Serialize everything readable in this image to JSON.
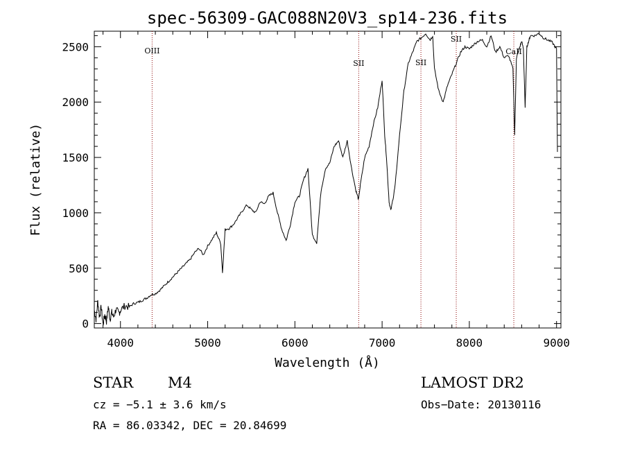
{
  "chart_data": {
    "type": "line",
    "title": "spec-56309-GAC088N20V3_sp14-236.fits",
    "xlabel": "Wavelength (Å)",
    "ylabel": "Flux (relative)",
    "xlim": [
      3700,
      9050
    ],
    "ylim": [
      -40,
      2640
    ],
    "x_ticks": [
      4000,
      5000,
      6000,
      7000,
      8000,
      9000
    ],
    "y_ticks": [
      0,
      500,
      1000,
      1500,
      2000,
      2500
    ],
    "grid": false,
    "series": [
      {
        "x": [
          3700,
          3720,
          3740,
          3760,
          3780,
          3800,
          3820,
          3840,
          3860,
          3880,
          3900,
          3920,
          3950,
          3980,
          4000,
          4050,
          4100,
          4150,
          4200,
          4250,
          4300,
          4350,
          4400,
          4450,
          4500,
          4550,
          4600,
          4650,
          4700,
          4750,
          4800,
          4850,
          4900,
          4950,
          5000,
          5050,
          5100,
          5150,
          5170,
          5200,
          5250,
          5300,
          5350,
          5400,
          5450,
          5500,
          5550,
          5600,
          5650,
          5700,
          5750,
          5800,
          5850,
          5900,
          5950,
          6000,
          6050,
          6100,
          6150,
          6200,
          6250,
          6300,
          6350,
          6400,
          6450,
          6500,
          6550,
          6600,
          6650,
          6700,
          6730,
          6750,
          6800,
          6850,
          6900,
          6950,
          7000,
          7030,
          7050,
          7080,
          7100,
          7130,
          7150,
          7200,
          7250,
          7300,
          7350,
          7400,
          7450,
          7500,
          7550,
          7580,
          7600,
          7650,
          7700,
          7750,
          7800,
          7850,
          7900,
          7950,
          8000,
          8050,
          8100,
          8150,
          8200,
          8250,
          8300,
          8350,
          8400,
          8450,
          8500,
          8520,
          8540,
          8560,
          8580,
          8600,
          8620,
          8640,
          8660,
          8680,
          8700,
          8750,
          8800,
          8850,
          8900,
          8950,
          9000,
          9010
        ],
        "y": [
          120,
          40,
          200,
          60,
          150,
          -10,
          80,
          20,
          150,
          40,
          100,
          60,
          130,
          90,
          120,
          160,
          150,
          180,
          190,
          210,
          230,
          260,
          270,
          300,
          340,
          380,
          420,
          460,
          500,
          540,
          580,
          640,
          680,
          620,
          700,
          760,
          820,
          720,
          460,
          850,
          860,
          900,
          960,
          1020,
          1070,
          1030,
          1000,
          1100,
          1080,
          1150,
          1180,
          1000,
          850,
          750,
          900,
          1100,
          1150,
          1300,
          1400,
          800,
          730,
          1200,
          1400,
          1450,
          1600,
          1650,
          1500,
          1650,
          1400,
          1200,
          1120,
          1250,
          1500,
          1600,
          1800,
          1950,
          2200,
          1700,
          1500,
          1100,
          1020,
          1150,
          1250,
          1700,
          2100,
          2350,
          2450,
          2550,
          2580,
          2620,
          2560,
          2600,
          2300,
          2100,
          2000,
          2150,
          2250,
          2350,
          2450,
          2500,
          2480,
          2520,
          2550,
          2560,
          2500,
          2600,
          2450,
          2500,
          2400,
          2420,
          2300,
          1700,
          2400,
          2450,
          2500,
          2550,
          2480,
          1950,
          2500,
          2550,
          2600,
          2600,
          2620,
          2580,
          2560,
          2540,
          2480,
          1550
        ],
        "color": "#000000"
      }
    ],
    "lines": [
      {
        "label": "OIII",
        "x": 4363
      },
      {
        "label": "SII",
        "x": 6732
      },
      {
        "label": "SII",
        "x": 7445
      },
      {
        "label": "SII",
        "x": 7850
      },
      {
        "label": "CaII",
        "x": 8510
      }
    ]
  },
  "info": {
    "object_class": "STAR",
    "subclass": "M4",
    "survey": "LAMOST DR2",
    "cz": "cz = −5.1 ± 3.6 km/s",
    "obs_date": "Obs−Date: 20130116",
    "coords": "RA =  86.03342, DEC =  20.84699"
  }
}
